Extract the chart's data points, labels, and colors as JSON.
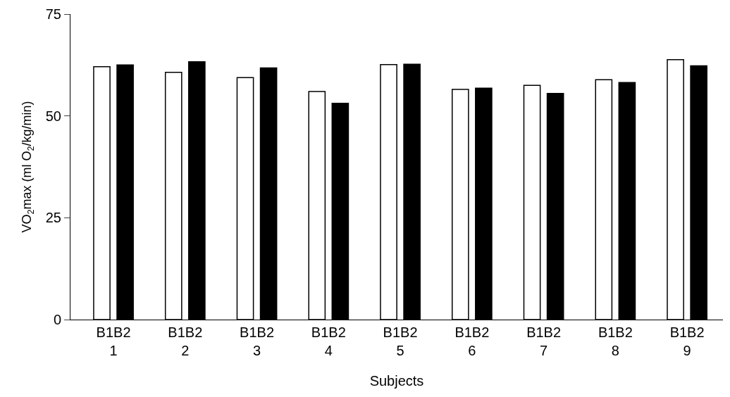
{
  "chart_data": {
    "type": "bar",
    "xlabel": "Subjects",
    "ylabel": "VO$_{2}$max (ml O$_{2}$/kg/min)",
    "categories": [
      "B1B2\n1",
      "B1B2\n2",
      "B1B2\n3",
      "B1B2\n4",
      "B1B2\n5",
      "B1B2\n6",
      "B1B2\n7",
      "B1B2\n8",
      "B1B2\n9"
    ],
    "series": [
      {
        "color": "#ffffff",
        "values": [
          62.1,
          60.7,
          59.4,
          56.0,
          62.6,
          56.5,
          57.5,
          58.9,
          63.8
        ]
      },
      {
        "color": "#000000",
        "values": [
          62.5,
          63.3,
          61.8,
          53.1,
          62.7,
          56.8,
          55.5,
          58.2,
          62.3
        ]
      }
    ],
    "ylim": [
      0,
      75
    ],
    "yticks": [
      0,
      25,
      50,
      75
    ]
  }
}
